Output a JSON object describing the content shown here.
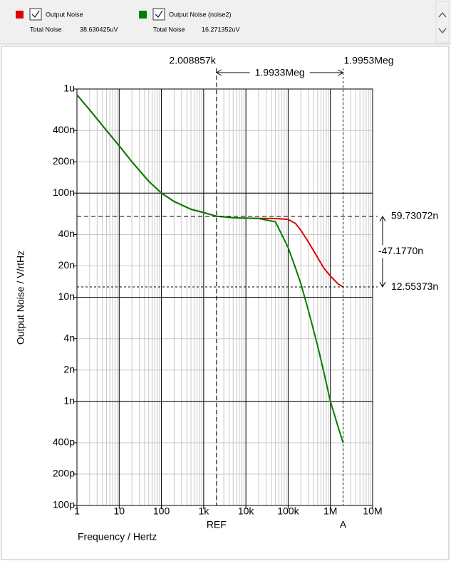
{
  "chart_data": {
    "type": "line",
    "x_label": "Frequency / Hertz",
    "y_label": "Output Noise / V/rtHz",
    "xscale": "log",
    "yscale": "log",
    "xlim": [
      1,
      10000000
    ],
    "ylim": [
      1e-10,
      1e-06
    ],
    "xticks": [
      1,
      10,
      100,
      {
        "value": 1000,
        "label": "1k"
      },
      {
        "value": 10000,
        "label": "10k"
      },
      {
        "value": 100000,
        "label": "100k"
      },
      {
        "value": 1000000,
        "label": "1M"
      },
      {
        "value": 10000000,
        "label": "10M"
      }
    ],
    "xminor": [
      2,
      3,
      4,
      5,
      6,
      7,
      8,
      9,
      20,
      30,
      40,
      50,
      60,
      70,
      80,
      90,
      200,
      300,
      400,
      500,
      600,
      700,
      800,
      900,
      2000,
      3000,
      4000,
      5000,
      6000,
      7000,
      8000,
      9000,
      20000,
      30000,
      40000,
      50000,
      60000,
      70000,
      80000,
      90000,
      200000,
      300000,
      400000,
      500000,
      600000,
      700000,
      800000,
      900000,
      2000000,
      3000000,
      4000000,
      5000000,
      6000000,
      7000000,
      8000000,
      9000000
    ],
    "yticks": [
      {
        "value": 1e-06,
        "label": "1u"
      },
      {
        "value": 4e-07,
        "label": "400n"
      },
      {
        "value": 2e-07,
        "label": "200n"
      },
      {
        "value": 1e-07,
        "label": "100n"
      },
      {
        "value": 4e-08,
        "label": "40n"
      },
      {
        "value": 2e-08,
        "label": "20n"
      },
      {
        "value": 1e-08,
        "label": "10n"
      },
      {
        "value": 4e-09,
        "label": "4n"
      },
      {
        "value": 2e-09,
        "label": "2n"
      },
      {
        "value": 1e-09,
        "label": "1n"
      },
      {
        "value": 4e-10,
        "label": "400p"
      },
      {
        "value": 2e-10,
        "label": "200p"
      },
      {
        "value": 1e-10,
        "label": "100p"
      }
    ],
    "ymajor": [
      1e-06,
      1e-07,
      1e-08,
      1e-09,
      1e-10
    ],
    "x": [
      1,
      2,
      5,
      10,
      20,
      50,
      100,
      200,
      500,
      1000,
      2000,
      5000,
      10000,
      20000,
      50000,
      100000,
      150000,
      200000,
      300000,
      500000,
      700000,
      1000000,
      1500000,
      2000000
    ],
    "series": [
      {
        "name": "Output Noise",
        "color": "#e00000",
        "total_label": "Total Noise",
        "total": "38.630425uV",
        "values": [
          8.8e-07,
          6.3e-07,
          4e-07,
          2.85e-07,
          2e-07,
          1.3e-07,
          1e-07,
          8.3e-08,
          7e-08,
          6.5e-08,
          6e-08,
          5.8e-08,
          5.75e-08,
          5.72e-08,
          5.7e-08,
          5.6e-08,
          5.1e-08,
          4.4e-08,
          3.4e-08,
          2.4e-08,
          1.9e-08,
          1.6e-08,
          1.35e-08,
          1.255e-08
        ]
      },
      {
        "name": "Output Noise (noise2)",
        "color": "#008000",
        "total_label": "Total Noise",
        "total": "16.271352uV",
        "values": [
          8.8e-07,
          6.3e-07,
          4e-07,
          2.85e-07,
          2e-07,
          1.3e-07,
          1e-07,
          8.3e-08,
          7e-08,
          6.5e-08,
          6e-08,
          5.8e-08,
          5.75e-08,
          5.7e-08,
          5.3e-08,
          3e-08,
          1.9e-08,
          1.35e-08,
          7.5e-09,
          3.4e-09,
          1.9e-09,
          1e-09,
          5.8e-10,
          4e-10
        ]
      }
    ],
    "cursors": [
      {
        "label": "REF",
        "x": 2008.857,
        "x_label": "2.008857k",
        "y": 5.973072e-08,
        "y_label": "59.73072n"
      },
      {
        "label": "A",
        "x": 1995300,
        "x_label": "1.9953Meg",
        "y": 1.255373e-08,
        "y_label": "12.55373n"
      }
    ],
    "delta_x_label": "1.9933Meg",
    "delta_y_label": "-47.1770n"
  }
}
